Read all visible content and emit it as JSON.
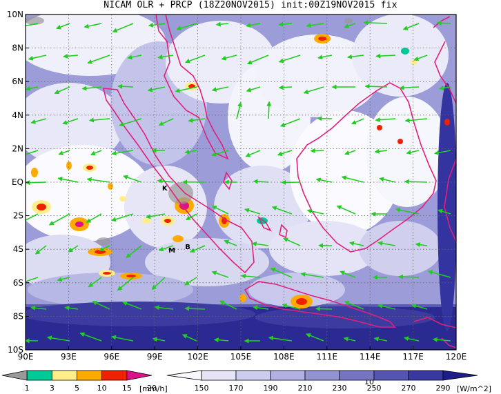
{
  "title": "NICAM OLR + PRCP (18Z20NOV2015) init:00Z19NOV2015 fix",
  "map": {
    "lon_min": 90,
    "lon_max": 120,
    "lat_min": -10,
    "lat_max": 10,
    "lon_ticks": [
      "90E",
      "93E",
      "96E",
      "99E",
      "102E",
      "105E",
      "108E",
      "111E",
      "114E",
      "117E",
      "120E"
    ],
    "lat_ticks": [
      "10N",
      "8N",
      "6N",
      "4N",
      "2N",
      "EQ",
      "2S",
      "4S",
      "6S",
      "8S",
      "10S"
    ],
    "stations": [
      {
        "id": "K",
        "lon": 99.7,
        "lat": -0.5
      },
      {
        "id": "M",
        "lon": 100.2,
        "lat": -4.2
      },
      {
        "id": "B",
        "lon": 101.3,
        "lat": -4.0
      }
    ],
    "colors": {
      "coast": "#e0207a",
      "wind": "#22cc22",
      "cloud_light": "#d4d4ef",
      "cloud_deep": "#24248e"
    },
    "reference_vector_label": "10"
  },
  "precip_scale": {
    "ticks": [
      "1",
      "3",
      "5",
      "10",
      "15",
      "20"
    ],
    "unit": "[mm/h]",
    "colors": [
      "#999999",
      "#00c896",
      "#ffee88",
      "#ffaa00",
      "#ee2200",
      "#dd1188"
    ]
  },
  "olr_scale": {
    "ticks": [
      "150",
      "170",
      "190",
      "210",
      "230",
      "250",
      "270",
      "290"
    ],
    "unit": "[W/m^2]",
    "colors": [
      "#f6f6fd",
      "#e4e4f6",
      "#ccccee",
      "#b0b0e2",
      "#9393d4",
      "#7575c4",
      "#5656b2",
      "#3838a0",
      "#1c1c8a"
    ]
  }
}
